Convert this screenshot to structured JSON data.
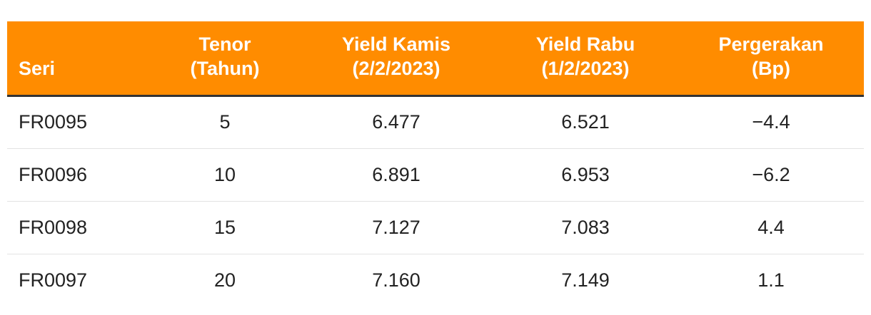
{
  "table": {
    "headers": [
      {
        "line1": "",
        "line2": "Seri"
      },
      {
        "line1": "Tenor",
        "line2": "(Tahun)"
      },
      {
        "line1": "Yield Kamis",
        "line2": "(2/2/2023)"
      },
      {
        "line1": "Yield Rabu",
        "line2": "(1/2/2023)"
      },
      {
        "line1": "Pergerakan",
        "line2": "(Bp)"
      }
    ],
    "rows": [
      [
        "FR0095",
        "5",
        "6.477",
        "6.521",
        "−4.4"
      ],
      [
        "FR0096",
        "10",
        "6.891",
        "6.953",
        "−6.2"
      ],
      [
        "FR0098",
        "15",
        "7.127",
        "7.083",
        "4.4"
      ],
      [
        "FR0097",
        "20",
        "7.160",
        "7.149",
        "1.1"
      ]
    ],
    "colors": {
      "header_bg": "#ff8c00",
      "header_text": "#ffffff",
      "header_rule": "#333333"
    }
  }
}
